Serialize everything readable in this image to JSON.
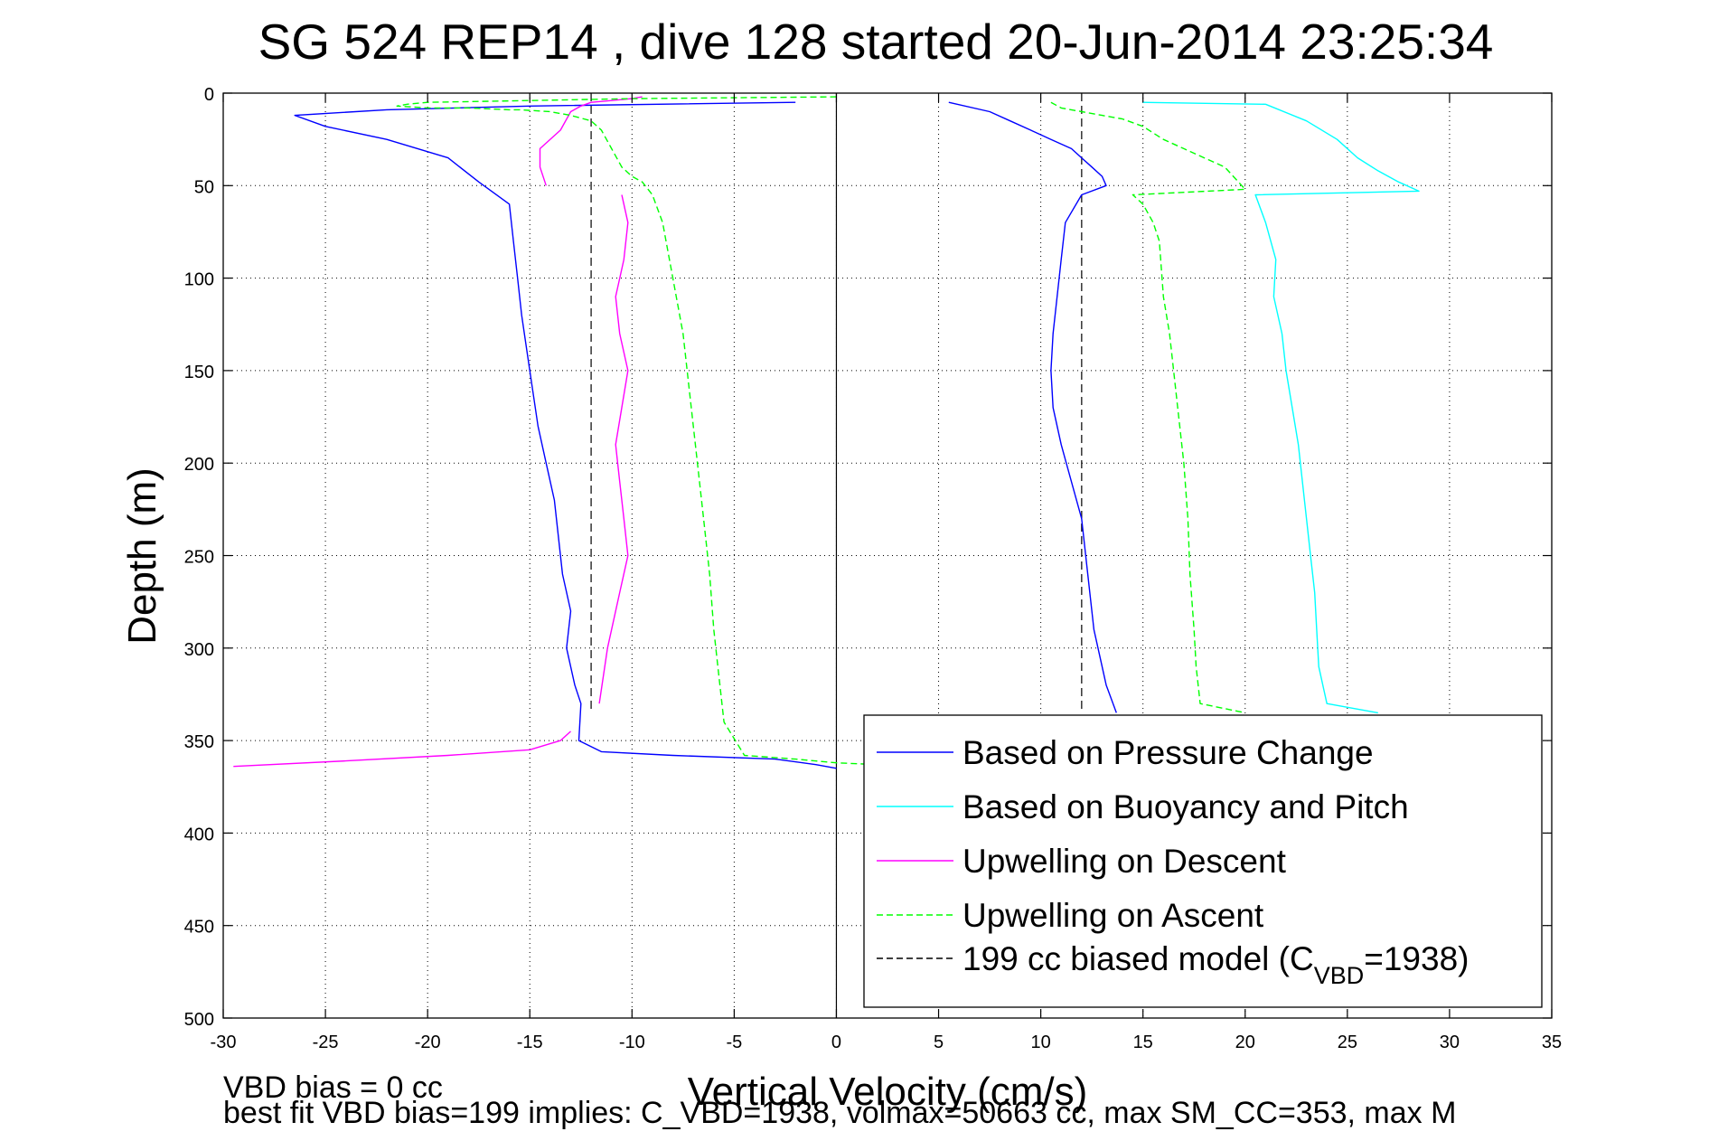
{
  "chart_data": {
    "type": "line",
    "title": "SG 524   REP14  , dive 128 started 20-Jun-2014 23:25:34",
    "xlabel": "Vertical Velocity (cm/s)",
    "ylabel": "Depth (m)",
    "xlim": [
      -30,
      35
    ],
    "ylim": [
      0,
      500
    ],
    "y_inverted": true,
    "grid": true,
    "legend_position": "bottom-right",
    "x_ticks": [
      -30,
      -25,
      -20,
      -15,
      -10,
      -5,
      0,
      5,
      10,
      15,
      20,
      25,
      30,
      35
    ],
    "y_ticks": [
      0,
      50,
      100,
      150,
      200,
      250,
      300,
      350,
      400,
      450,
      500
    ],
    "reference_lines": [
      {
        "type": "vertical",
        "x": 0,
        "color": "#000000",
        "style": "solid"
      },
      {
        "type": "vertical",
        "x": -12,
        "y_range": [
          0,
          335
        ],
        "color": "#000000",
        "style": "dashed"
      },
      {
        "type": "vertical",
        "x": 12,
        "y_range": [
          0,
          335
        ],
        "color": "#000000",
        "style": "dashed"
      }
    ],
    "series": [
      {
        "name": "Based on Pressure Change",
        "color": "#0000ff",
        "style": "solid",
        "segments": [
          {
            "x": [
              -2,
              -15,
              -22,
              -26.5,
              -25,
              -22,
              -19,
              -17.5,
              -16,
              -15.8,
              -15.6,
              -15.4,
              -15,
              -14.6,
              -14.2,
              -13.8,
              -13.6,
              -13.4,
              -13,
              -13.2,
              -12.8,
              -12.5,
              -12.6,
              -11.5,
              -8,
              -3,
              -1,
              0
            ],
            "y": [
              5,
              7,
              9,
              12,
              18,
              25,
              35,
              48,
              60,
              80,
              100,
              120,
              150,
              180,
              200,
              220,
              240,
              260,
              280,
              300,
              320,
              330,
              350,
              356,
              358,
              360,
              363,
              365
            ]
          },
          {
            "x": [
              5.5,
              7.5,
              8.5,
              9.5,
              10.5,
              11.5,
              12,
              12.5,
              13,
              13.2,
              12,
              11.2,
              11,
              10.8,
              10.6,
              10.5,
              10.6,
              11,
              11.5,
              12,
              12.3,
              12.6,
              13.2,
              13.7
            ],
            "y": [
              5,
              10,
              15,
              20,
              25,
              30,
              35,
              40,
              45,
              50,
              55,
              70,
              90,
              110,
              130,
              150,
              170,
              190,
              210,
              230,
              260,
              290,
              320,
              335
            ]
          }
        ]
      },
      {
        "name": "Based on Buoyancy and Pitch",
        "color": "#00ffff",
        "style": "solid",
        "segments": [
          {
            "x": [
              15,
              21,
              23,
              24.5,
              25.5,
              26.5,
              27.5,
              28.5,
              20.5,
              21,
              21.5,
              21.4,
              21.8,
              22,
              22.3,
              22.6,
              22.8,
              23,
              23.2,
              23.4,
              23.5,
              23.6,
              24,
              26.5
            ],
            "y": [
              5,
              6,
              15,
              25,
              35,
              42,
              48,
              53,
              55,
              70,
              90,
              110,
              130,
              150,
              170,
              190,
              210,
              230,
              250,
              270,
              290,
              310,
              330,
              335
            ]
          }
        ]
      },
      {
        "name": "Upwelling on Descent",
        "color": "#ff00ff",
        "style": "solid",
        "segments": [
          {
            "x": [
              -9.5,
              -10,
              -11,
              -12,
              -12.5,
              -13,
              -13.5,
              -14.5,
              -14.5,
              -14.2
            ],
            "y": [
              2,
              3,
              4,
              5,
              7,
              10,
              20,
              30,
              40,
              50
            ]
          },
          {
            "x": [
              -10.5,
              -10.2,
              -10.4,
              -10.8,
              -10.6,
              -10.2,
              -10.5,
              -10.8,
              -10.6,
              -10.4,
              -10.2,
              -10.6,
              -11.2,
              -11.6
            ],
            "y": [
              55,
              70,
              90,
              110,
              130,
              150,
              170,
              190,
              210,
              230,
              250,
              270,
              300,
              330
            ]
          },
          {
            "x": [
              -13,
              -13.5,
              -15,
              -19,
              -24,
              -29.5
            ],
            "y": [
              345,
              350,
              355,
              358,
              361,
              364
            ]
          }
        ]
      },
      {
        "name": "Upwelling on Ascent",
        "color": "#00ff00",
        "style": "dashed",
        "segments": [
          {
            "x": [
              0,
              -10,
              -15,
              -20,
              -21,
              -21.5,
              -20,
              -18,
              -16,
              -15.5,
              -14,
              -13,
              -12,
              -11.5,
              -11,
              -10.5,
              -10,
              -9.5,
              -9,
              -8.5,
              -8,
              -7.5,
              -7.2,
              -6.8,
              -6.5,
              -6.2,
              -6,
              -5.8,
              -5.5,
              -4.5,
              -2,
              0,
              2
            ],
            "y": [
              2,
              3,
              4,
              5,
              6,
              7,
              8,
              8,
              9,
              9,
              10,
              12,
              15,
              20,
              30,
              40,
              45,
              48,
              55,
              70,
              100,
              130,
              160,
              200,
              230,
              260,
              290,
              310,
              340,
              358,
              360,
              362,
              363
            ]
          },
          {
            "x": [
              10.5,
              11,
              12,
              13,
              14,
              15,
              16,
              17,
              18,
              19,
              19.5,
              20,
              14.5,
              15,
              15.5,
              15.8,
              16,
              16.3,
              16.5,
              16.7,
              17,
              17.2,
              17.3,
              17.5,
              17.6,
              17.8,
              20
            ],
            "y": [
              5,
              8,
              10,
              12,
              14,
              18,
              25,
              30,
              35,
              40,
              46,
              52,
              55,
              60,
              70,
              80,
              110,
              130,
              150,
              170,
              200,
              230,
              260,
              290,
              310,
              330,
              335
            ]
          }
        ]
      },
      {
        "name": "199 cc biased model (C_VBD=1938)",
        "color": "#000000",
        "style": "dashed",
        "segments": []
      }
    ],
    "legend": [
      {
        "label": "Based on Pressure Change",
        "color": "#0000ff",
        "style": "solid"
      },
      {
        "label": "Based on Buoyancy and Pitch",
        "color": "#00ffff",
        "style": "solid"
      },
      {
        "label": "Upwelling on Descent",
        "color": "#ff00ff",
        "style": "solid"
      },
      {
        "label": "Upwelling on Ascent",
        "color": "#00ff00",
        "style": "dashed"
      },
      {
        "label_main": "199 cc biased model (C",
        "label_sub": "VBD",
        "label_tail": "=1938)",
        "color": "#000000",
        "style": "dashed"
      }
    ]
  },
  "footnotes": {
    "line1": "VBD bias = 0 cc",
    "line2": "best fit VBD bias=199 implies: C_VBD=1938, volmax=50663 cc, max SM_CC=353, max M"
  }
}
